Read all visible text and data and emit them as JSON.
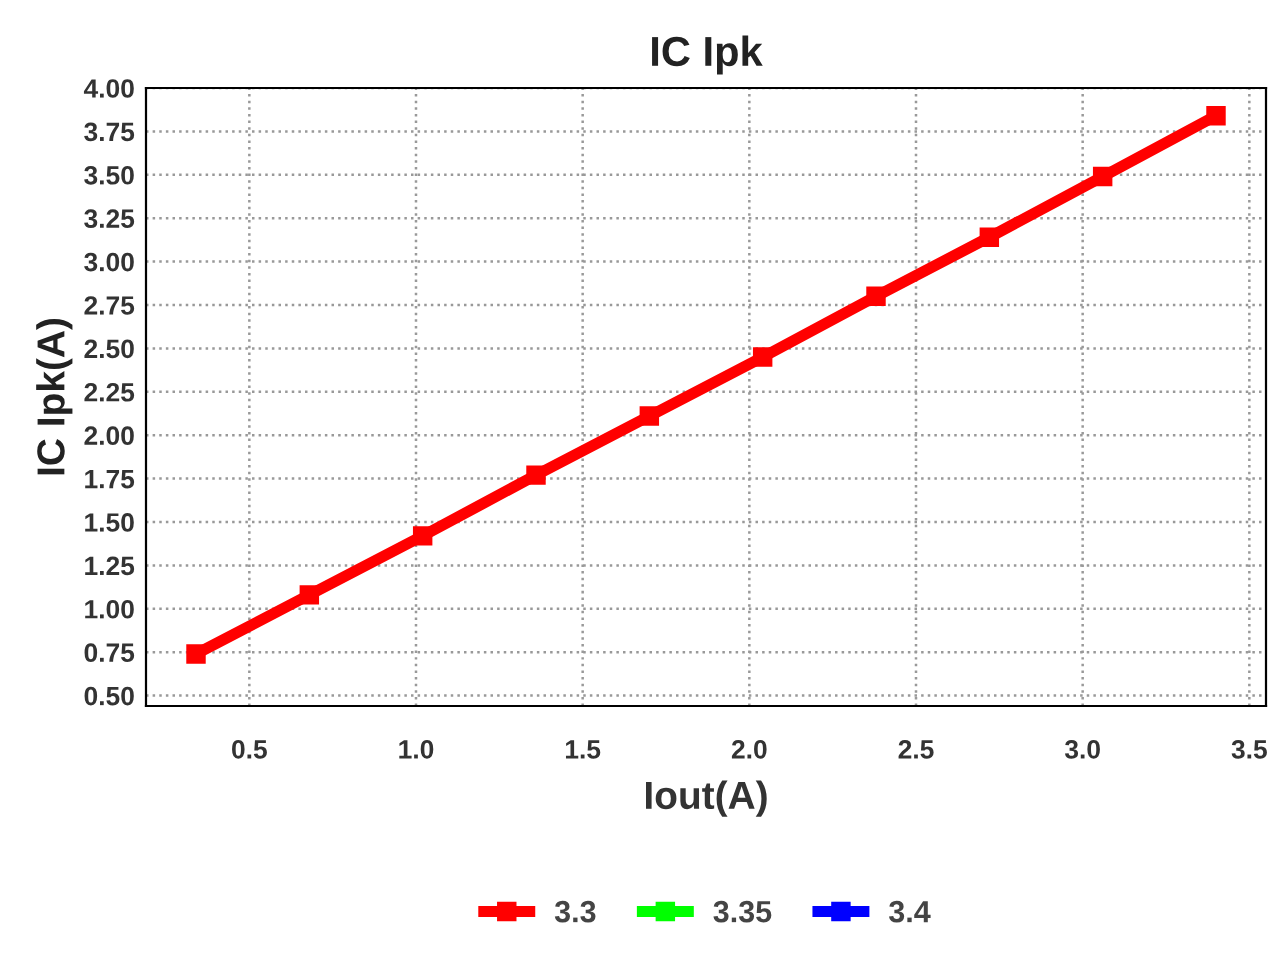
{
  "chart_data": {
    "type": "line",
    "title": "IC Ipk",
    "xlabel": "Iout(A)",
    "ylabel": "IC Ipk(A)",
    "x": [
      0.34,
      0.68,
      1.02,
      1.36,
      1.7,
      2.04,
      2.38,
      2.72,
      3.06,
      3.4
    ],
    "series": [
      {
        "name": "3.4",
        "color": "#0000ff",
        "values": [
          null,
          null,
          null,
          null,
          null,
          null,
          null,
          null,
          null,
          null
        ]
      },
      {
        "name": "3.35",
        "color": "#00ff00",
        "values": [
          null,
          null,
          null,
          null,
          null,
          null,
          null,
          null,
          null,
          null
        ]
      },
      {
        "name": "3.3",
        "color": "#ff0000",
        "values": [
          0.74,
          1.08,
          1.42,
          1.77,
          2.11,
          2.45,
          2.8,
          3.14,
          3.49,
          3.84
        ]
      }
    ],
    "xlim": [
      0.19,
      3.55
    ],
    "ylim": [
      0.44,
      4.0
    ],
    "xticks": [
      {
        "value": 0.5,
        "label": "0.5"
      },
      {
        "value": 1.0,
        "label": "1.0"
      },
      {
        "value": 1.5,
        "label": "1.5"
      },
      {
        "value": 2.0,
        "label": "2.0"
      },
      {
        "value": 2.5,
        "label": "2.5"
      },
      {
        "value": 3.0,
        "label": "3.0"
      },
      {
        "value": 3.5,
        "label": "3.5"
      }
    ],
    "yticks": [
      {
        "value": 0.5,
        "label": "0.50"
      },
      {
        "value": 0.75,
        "label": "0.75"
      },
      {
        "value": 1.0,
        "label": "1.00"
      },
      {
        "value": 1.25,
        "label": "1.25"
      },
      {
        "value": 1.5,
        "label": "1.50"
      },
      {
        "value": 1.75,
        "label": "1.75"
      },
      {
        "value": 2.0,
        "label": "2.00"
      },
      {
        "value": 2.25,
        "label": "2.25"
      },
      {
        "value": 2.5,
        "label": "2.50"
      },
      {
        "value": 2.75,
        "label": "2.75"
      },
      {
        "value": 3.0,
        "label": "3.00"
      },
      {
        "value": 3.25,
        "label": "3.25"
      },
      {
        "value": 3.5,
        "label": "3.50"
      },
      {
        "value": 3.75,
        "label": "3.75"
      },
      {
        "value": 4.0,
        "label": "4.00"
      }
    ],
    "grid": true,
    "legend": "bottom",
    "marker": "square",
    "line_style": "solid"
  }
}
